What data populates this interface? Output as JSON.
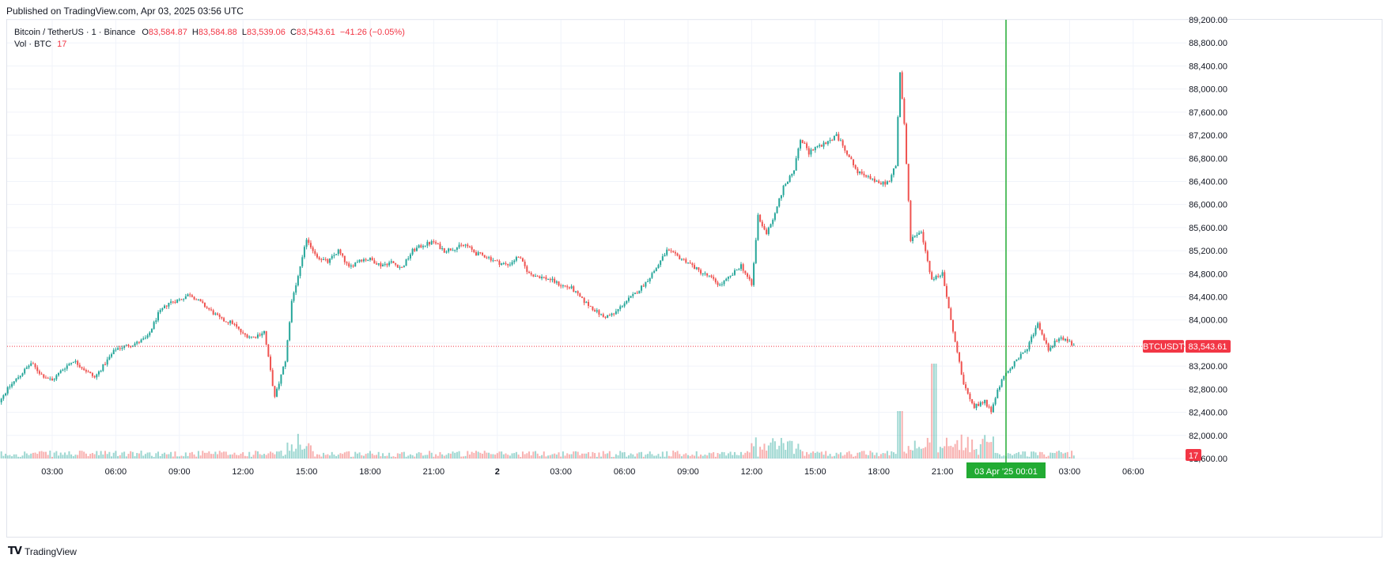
{
  "header": {
    "published": "Published on TradingView.com, Apr 03, 2025 03:56 UTC"
  },
  "legend": {
    "symbol": "Bitcoin / TetherUS · 1 · Binance",
    "o_label": "O",
    "o": "83,584.87",
    "h_label": "H",
    "h": "83,584.88",
    "l_label": "L",
    "l": "83,539.06",
    "c_label": "C",
    "c": "83,543.61",
    "change": "−41.26 (−0.05%)",
    "vol_label": "Vol · BTC",
    "vol": "17"
  },
  "footer": {
    "brand": "TradingView",
    "logo_icon": "tradingview-logo-icon"
  },
  "colors": {
    "up": "#26a69a",
    "down": "#ef5350",
    "price_line": "#f23645",
    "cursor": "#22ab33",
    "grid": "#f0f3fa"
  },
  "chart_data": {
    "type": "candlestick",
    "symbol": "Bitcoin / TetherUS",
    "interval": "1",
    "exchange": "Binance",
    "y_range": [
      81600,
      89200
    ],
    "y_ticks": [
      "89,200.00",
      "88,800.00",
      "88,400.00",
      "88,000.00",
      "87,600.00",
      "87,200.00",
      "86,800.00",
      "86,400.00",
      "86,000.00",
      "85,600.00",
      "85,200.00",
      "84,800.00",
      "84,400.00",
      "84,000.00",
      "83,600.00",
      "83,200.00",
      "82,800.00",
      "82,400.00",
      "82,000.00",
      "81,600.00"
    ],
    "x_ticks": [
      "03:00",
      "06:00",
      "09:00",
      "12:00",
      "15:00",
      "18:00",
      "21:00",
      "2",
      "03:00",
      "06:00",
      "09:00",
      "12:00",
      "15:00",
      "18:00",
      "21:00",
      "00:00",
      "03:00",
      "06:00"
    ],
    "grid": true,
    "price_label": {
      "name": "BTCUSDT",
      "value": "83,543.61"
    },
    "volume_label": "17",
    "crosshair_label": {
      "date": "03 Apr '25",
      "time": "00:01"
    },
    "price_path": [
      {
        "t": 0.0,
        "p": 82700
      },
      {
        "t": 0.5,
        "p": 82600
      },
      {
        "t": 1.0,
        "p": 82850
      },
      {
        "t": 1.5,
        "p": 83050
      },
      {
        "t": 2.0,
        "p": 83250
      },
      {
        "t": 2.5,
        "p": 83050
      },
      {
        "t": 3.0,
        "p": 82950
      },
      {
        "t": 3.5,
        "p": 83150
      },
      {
        "t": 4.0,
        "p": 83300
      },
      {
        "t": 4.5,
        "p": 83150
      },
      {
        "t": 5.0,
        "p": 83000
      },
      {
        "t": 5.5,
        "p": 83250
      },
      {
        "t": 6.0,
        "p": 83500
      },
      {
        "t": 6.5,
        "p": 83550
      },
      {
        "t": 7.0,
        "p": 83600
      },
      {
        "t": 7.5,
        "p": 83700
      },
      {
        "t": 8.0,
        "p": 84100
      },
      {
        "t": 8.5,
        "p": 84300
      },
      {
        "t": 9.0,
        "p": 84350
      },
      {
        "t": 9.5,
        "p": 84450
      },
      {
        "t": 10.0,
        "p": 84300
      },
      {
        "t": 10.5,
        "p": 84150
      },
      {
        "t": 11.0,
        "p": 84000
      },
      {
        "t": 11.5,
        "p": 83950
      },
      {
        "t": 12.0,
        "p": 83750
      },
      {
        "t": 12.5,
        "p": 83700
      },
      {
        "t": 13.0,
        "p": 83800
      },
      {
        "t": 13.5,
        "p": 82650
      },
      {
        "t": 14.0,
        "p": 83300
      },
      {
        "t": 14.3,
        "p": 84300
      },
      {
        "t": 14.7,
        "p": 84900
      },
      {
        "t": 15.0,
        "p": 85400
      },
      {
        "t": 15.5,
        "p": 85100
      },
      {
        "t": 16.0,
        "p": 85000
      },
      {
        "t": 16.5,
        "p": 85200
      },
      {
        "t": 17.0,
        "p": 84900
      },
      {
        "t": 17.5,
        "p": 85050
      },
      {
        "t": 18.0,
        "p": 85050
      },
      {
        "t": 18.5,
        "p": 84950
      },
      {
        "t": 19.0,
        "p": 85000
      },
      {
        "t": 19.5,
        "p": 84900
      },
      {
        "t": 20.0,
        "p": 85200
      },
      {
        "t": 20.5,
        "p": 85300
      },
      {
        "t": 21.0,
        "p": 85350
      },
      {
        "t": 21.5,
        "p": 85200
      },
      {
        "t": 22.0,
        "p": 85250
      },
      {
        "t": 22.5,
        "p": 85300
      },
      {
        "t": 23.0,
        "p": 85150
      },
      {
        "t": 23.5,
        "p": 85100
      },
      {
        "t": 24.0,
        "p": 85000
      },
      {
        "t": 24.5,
        "p": 84950
      },
      {
        "t": 25.0,
        "p": 85100
      },
      {
        "t": 25.5,
        "p": 84800
      },
      {
        "t": 26.0,
        "p": 84750
      },
      {
        "t": 26.5,
        "p": 84700
      },
      {
        "t": 27.0,
        "p": 84600
      },
      {
        "t": 27.5,
        "p": 84550
      },
      {
        "t": 28.0,
        "p": 84350
      },
      {
        "t": 28.5,
        "p": 84200
      },
      {
        "t": 29.0,
        "p": 84050
      },
      {
        "t": 29.5,
        "p": 84100
      },
      {
        "t": 30.0,
        "p": 84300
      },
      {
        "t": 30.5,
        "p": 84450
      },
      {
        "t": 31.0,
        "p": 84650
      },
      {
        "t": 31.5,
        "p": 84900
      },
      {
        "t": 32.0,
        "p": 85200
      },
      {
        "t": 32.5,
        "p": 85100
      },
      {
        "t": 33.0,
        "p": 85000
      },
      {
        "t": 33.5,
        "p": 84850
      },
      {
        "t": 34.0,
        "p": 84750
      },
      {
        "t": 34.5,
        "p": 84600
      },
      {
        "t": 35.0,
        "p": 84750
      },
      {
        "t": 35.5,
        "p": 84950
      },
      {
        "t": 36.0,
        "p": 84600
      },
      {
        "t": 36.3,
        "p": 85800
      },
      {
        "t": 36.7,
        "p": 85500
      },
      {
        "t": 37.0,
        "p": 85750
      },
      {
        "t": 37.5,
        "p": 86300
      },
      {
        "t": 38.0,
        "p": 86600
      },
      {
        "t": 38.3,
        "p": 87150
      },
      {
        "t": 38.7,
        "p": 86900
      },
      {
        "t": 39.0,
        "p": 87000
      },
      {
        "t": 39.5,
        "p": 87050
      },
      {
        "t": 40.0,
        "p": 87200
      },
      {
        "t": 40.5,
        "p": 86900
      },
      {
        "t": 41.0,
        "p": 86550
      },
      {
        "t": 41.5,
        "p": 86500
      },
      {
        "t": 42.0,
        "p": 86350
      },
      {
        "t": 42.5,
        "p": 86400
      },
      {
        "t": 42.8,
        "p": 86700
      },
      {
        "t": 43.0,
        "p": 88300
      },
      {
        "t": 43.2,
        "p": 87400
      },
      {
        "t": 43.5,
        "p": 85400
      },
      {
        "t": 44.0,
        "p": 85500
      },
      {
        "t": 44.5,
        "p": 84700
      },
      {
        "t": 45.0,
        "p": 84800
      },
      {
        "t": 45.5,
        "p": 83800
      },
      {
        "t": 46.0,
        "p": 82900
      },
      {
        "t": 46.5,
        "p": 82500
      },
      {
        "t": 47.0,
        "p": 82600
      },
      {
        "t": 47.3,
        "p": 82400
      },
      {
        "t": 47.6,
        "p": 82800
      },
      {
        "t": 48.0,
        "p": 83100
      },
      {
        "t": 48.5,
        "p": 83300
      },
      {
        "t": 49.0,
        "p": 83500
      },
      {
        "t": 49.5,
        "p": 83950
      },
      {
        "t": 50.0,
        "p": 83500
      },
      {
        "t": 50.5,
        "p": 83700
      },
      {
        "t": 51.0,
        "p": 83600
      },
      {
        "t": 51.3,
        "p": 83543.61
      }
    ]
  }
}
